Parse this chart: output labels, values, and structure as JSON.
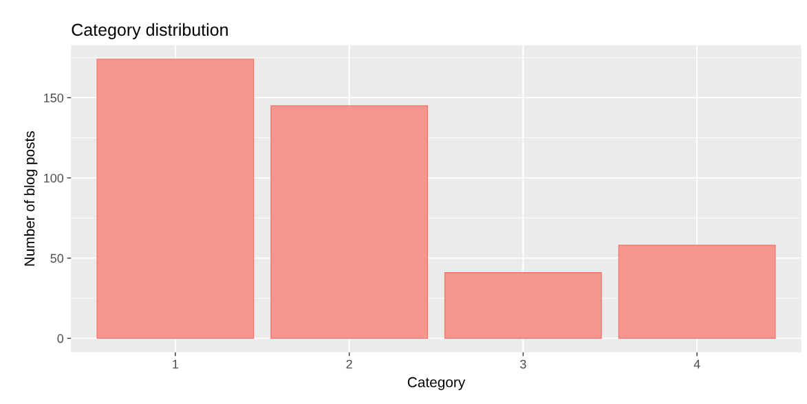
{
  "chart_data": {
    "type": "bar",
    "title": "Category distribution",
    "xlabel": "Category",
    "ylabel": "Number of blog posts",
    "categories": [
      "1",
      "2",
      "3",
      "4"
    ],
    "values": [
      174,
      145,
      41,
      58
    ],
    "color": "#f4978f",
    "ylim": [
      -8.7,
      182.7
    ],
    "yticks": [
      0,
      50,
      100,
      150
    ],
    "grid": true
  }
}
